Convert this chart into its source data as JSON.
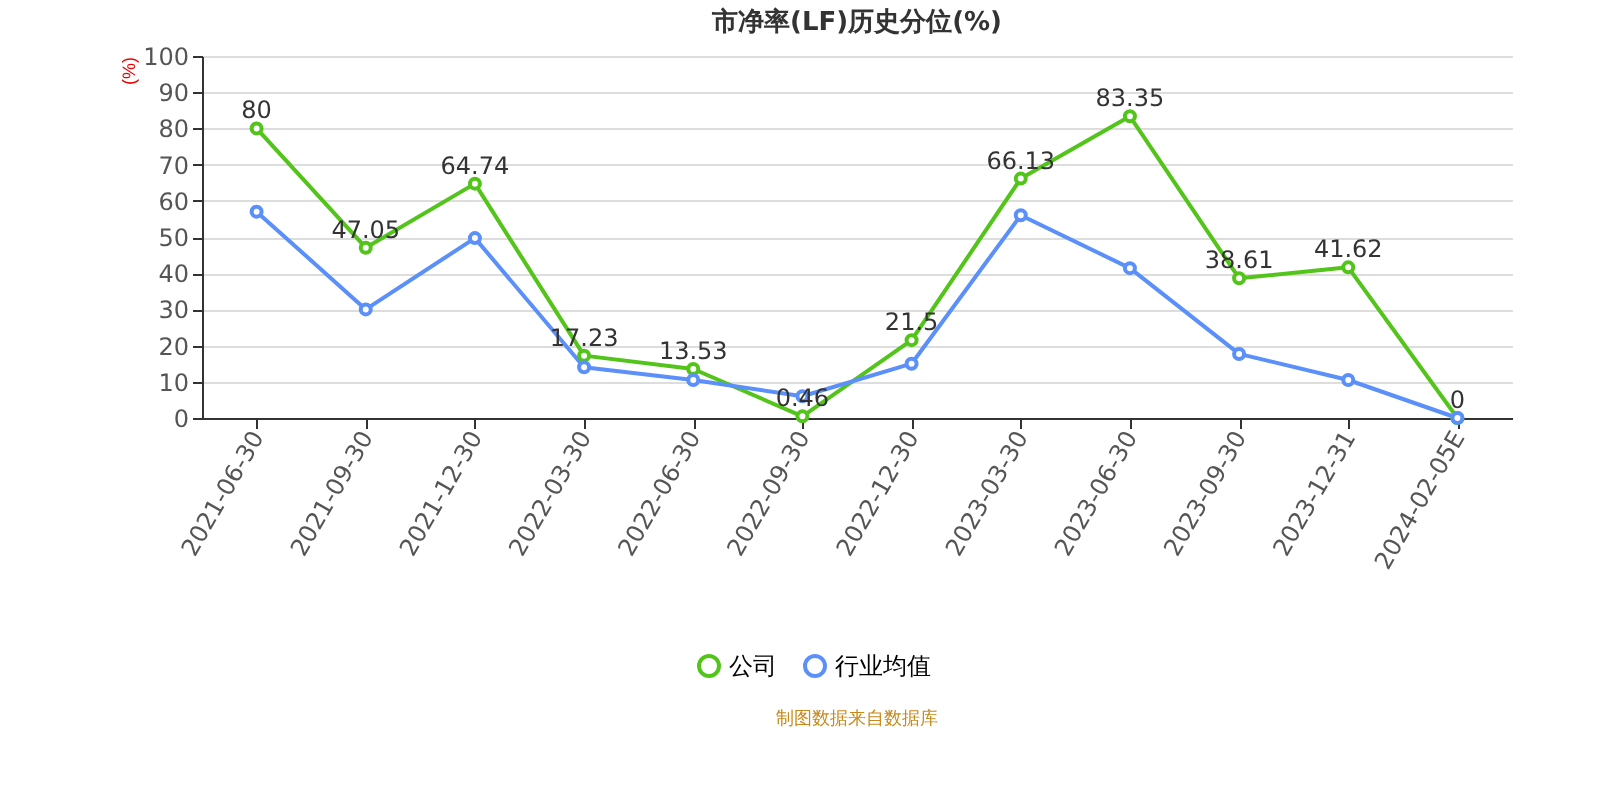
{
  "chart_data": {
    "type": "line",
    "title": "市净率(LF)历史分位(%)",
    "ylabel": "(%)",
    "categories": [
      "2021-06-30",
      "2021-09-30",
      "2021-12-30",
      "2022-03-30",
      "2022-06-30",
      "2022-09-30",
      "2022-12-30",
      "2023-03-30",
      "2023-06-30",
      "2023-09-30",
      "2023-12-31",
      "2024-02-05E"
    ],
    "series": [
      {
        "name": "公司",
        "color": "#52c41a",
        "values": [
          80,
          47.05,
          64.74,
          17.23,
          13.53,
          0.46,
          21.5,
          66.13,
          83.35,
          38.61,
          41.62,
          0
        ],
        "value_labels": [
          "80",
          "47.05",
          "64.74",
          "17.23",
          "13.53",
          "0.46",
          "21.5",
          "66.13",
          "83.35",
          "38.61",
          "41.62",
          "0"
        ]
      },
      {
        "name": "行业均值",
        "color": "#5b8ff9",
        "values": [
          57,
          30,
          49.7,
          14,
          10.5,
          6,
          15,
          56,
          41.4,
          17.7,
          10.5,
          0
        ]
      }
    ],
    "ylim": [
      0,
      100
    ],
    "yticks": [
      0,
      10,
      20,
      30,
      40,
      50,
      60,
      70,
      80,
      90,
      100
    ],
    "grid": "y",
    "legend": "bottom",
    "marker": "circle",
    "line_style": "solid",
    "annotations": [
      "制图数据来自数据库"
    ]
  }
}
